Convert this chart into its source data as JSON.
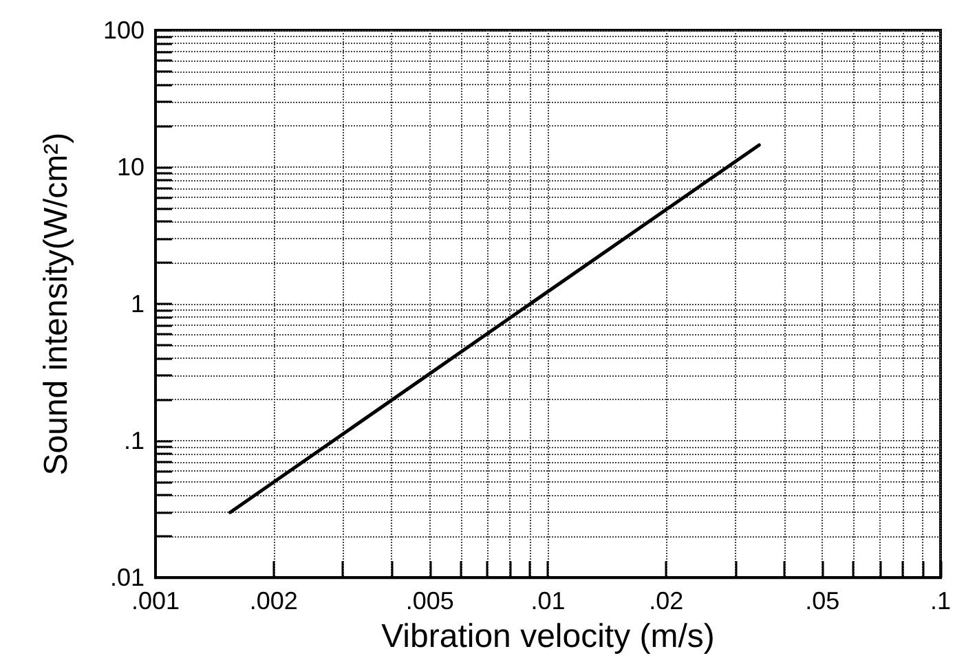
{
  "chart_data": {
    "type": "line",
    "xlabel": "Vibration velocity (m/s)",
    "ylabel": "Sound intensity(W/cm²)",
    "log": "xy",
    "grid": true,
    "line_style": "solid",
    "marker": "none",
    "x": [
      0.00155,
      0.009,
      0.0345
    ],
    "series": [
      {
        "color": "#000000",
        "values": [
          0.03,
          1,
          14.5
        ]
      }
    ],
    "xlim": [
      0.001,
      0.1
    ],
    "ylim": [
      0.01,
      100
    ],
    "xticks": [
      {
        "value": 0.001,
        "label": ".001"
      },
      {
        "value": 0.002,
        "label": ".002"
      },
      {
        "value": 0.003,
        "label": null
      },
      {
        "value": 0.004,
        "label": null
      },
      {
        "value": 0.005,
        "label": ".005"
      },
      {
        "value": 0.006,
        "label": null
      },
      {
        "value": 0.007,
        "label": null
      },
      {
        "value": 0.008,
        "label": null
      },
      {
        "value": 0.009,
        "label": null
      },
      {
        "value": 0.01,
        "label": ".01"
      },
      {
        "value": 0.02,
        "label": ".02"
      },
      {
        "value": 0.03,
        "label": null
      },
      {
        "value": 0.04,
        "label": null
      },
      {
        "value": 0.05,
        "label": ".05"
      },
      {
        "value": 0.06,
        "label": null
      },
      {
        "value": 0.07,
        "label": null
      },
      {
        "value": 0.08,
        "label": null
      },
      {
        "value": 0.09,
        "label": null
      },
      {
        "value": 0.1,
        "label": ".1"
      }
    ],
    "yticks": [
      {
        "value": 0.01,
        "label": ".01"
      },
      {
        "value": 0.02,
        "label": null
      },
      {
        "value": 0.03,
        "label": null
      },
      {
        "value": 0.04,
        "label": null
      },
      {
        "value": 0.05,
        "label": null
      },
      {
        "value": 0.06,
        "label": null
      },
      {
        "value": 0.07,
        "label": null
      },
      {
        "value": 0.08,
        "label": null
      },
      {
        "value": 0.09,
        "label": null
      },
      {
        "value": 0.1,
        "label": ".1"
      },
      {
        "value": 0.2,
        "label": null
      },
      {
        "value": 0.3,
        "label": null
      },
      {
        "value": 0.4,
        "label": null
      },
      {
        "value": 0.5,
        "label": null
      },
      {
        "value": 0.6,
        "label": null
      },
      {
        "value": 0.7,
        "label": null
      },
      {
        "value": 0.8,
        "label": null
      },
      {
        "value": 0.9,
        "label": null
      },
      1,
      {
        "value": 2,
        "label": null
      },
      {
        "value": 3,
        "label": null
      },
      {
        "value": 4,
        "label": null
      },
      {
        "value": 5,
        "label": null
      },
      {
        "value": 6,
        "label": null
      },
      {
        "value": 7,
        "label": null
      },
      {
        "value": 8,
        "label": null
      },
      {
        "value": 9,
        "label": null
      },
      10,
      {
        "value": 20,
        "label": null
      },
      {
        "value": 30,
        "label": null
      },
      {
        "value": 40,
        "label": null
      },
      {
        "value": 50,
        "label": null
      },
      {
        "value": 60,
        "label": null
      },
      {
        "value": 70,
        "label": null
      },
      {
        "value": 80,
        "label": null
      },
      {
        "value": 90,
        "label": null
      },
      100
    ]
  }
}
